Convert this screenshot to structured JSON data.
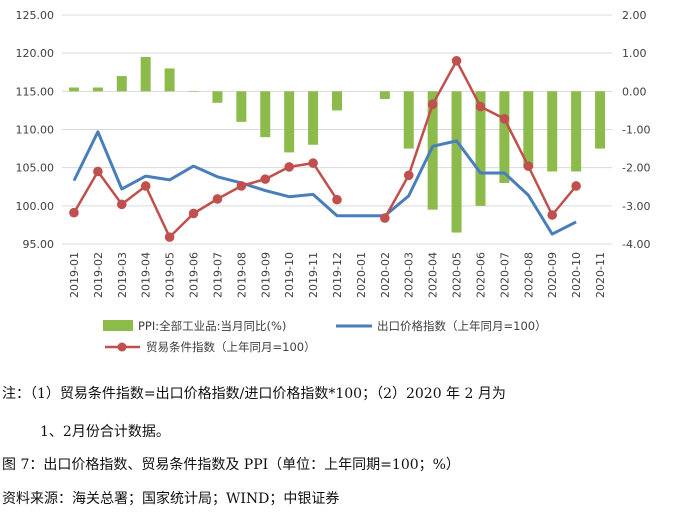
{
  "chart_data": {
    "type": "bar+line",
    "categories": [
      "2019-01",
      "2019-02",
      "2019-03",
      "2019-04",
      "2019-05",
      "2019-06",
      "2019-07",
      "2019-08",
      "2019-09",
      "2019-10",
      "2019-11",
      "2019-12",
      "2020-01",
      "2020-02",
      "2020-03",
      "2020-04",
      "2020-05",
      "2020-06",
      "2020-07",
      "2020-08",
      "2020-09",
      "2020-10",
      "2020-11"
    ],
    "left_axis": {
      "min": 95,
      "max": 125,
      "step": 5,
      "tick_labels": [
        "95.00",
        "100.00",
        "105.00",
        "110.00",
        "115.00",
        "120.00",
        "125.00"
      ]
    },
    "right_axis": {
      "min": -4,
      "max": 2,
      "step": 1,
      "tick_labels": [
        "-4.00",
        "-3.00",
        "-2.00",
        "-1.00",
        "0.00",
        "1.00",
        "2.00"
      ]
    },
    "series": [
      {
        "name": "PPI:全部工业品:当月同比(%)",
        "type": "bar",
        "axis": "right",
        "color": "#8dbb4b",
        "values": [
          0.1,
          0.1,
          0.4,
          0.9,
          0.6,
          0.0,
          -0.3,
          -0.8,
          -1.2,
          -1.6,
          -1.4,
          -0.5,
          null,
          -0.2,
          -1.5,
          -3.1,
          -3.7,
          -3.0,
          -2.4,
          -2.0,
          -2.1,
          -2.1,
          -1.5
        ]
      },
      {
        "name": "出口价格指数（上年同月=100）",
        "type": "line",
        "axis": "left",
        "color": "#4a7ebb",
        "values": [
          103.3,
          109.7,
          102.2,
          103.9,
          103.4,
          105.2,
          103.8,
          103.0,
          102.0,
          101.2,
          101.5,
          98.7,
          98.7,
          98.7,
          101.3,
          107.8,
          108.5,
          104.3,
          104.3,
          101.4,
          96.3,
          97.9,
          null
        ]
      },
      {
        "name": "贸易条件指数（上年同月=100）",
        "type": "line",
        "axis": "left",
        "color": "#c0504d",
        "values": [
          99.1,
          104.5,
          100.2,
          102.6,
          95.9,
          99.0,
          100.9,
          102.6,
          103.5,
          105.1,
          105.6,
          100.8,
          null,
          98.4,
          104.0,
          113.3,
          119.0,
          113.0,
          111.4,
          105.2,
          98.8,
          102.6,
          null
        ]
      }
    ]
  },
  "notes": {
    "line1": "注：（1）贸易条件指数=出口价格指数/进口价格指数*100；（2）2020 年 2 月为",
    "line2": "1、2月份合计数据。",
    "line3": "图 7：出口价格指数、贸易条件指数及 PPI（单位：上年同期=100；%）",
    "line4": "资料来源：海关总署；国家统计局；WIND；中银证券"
  }
}
